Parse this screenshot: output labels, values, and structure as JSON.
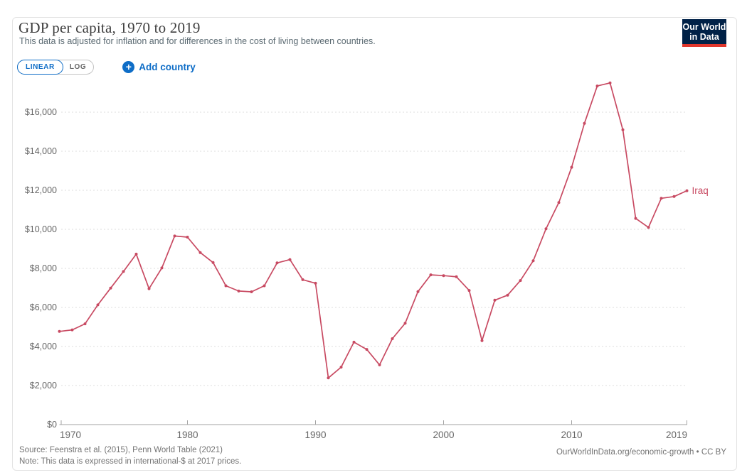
{
  "header": {
    "title": "GDP per capita, 1970 to 2019",
    "subtitle": "This data is adjusted for inflation and for differences in the cost of living between countries."
  },
  "logo": {
    "line1": "Our World",
    "line2": "in Data"
  },
  "controls": {
    "linear_label": "LINEAR",
    "log_label": "LOG",
    "plus_icon": "+",
    "add_country_label": "Add country"
  },
  "footer": {
    "source": "Source: Feenstra et al. (2015), Penn World Table (2021)",
    "note": "Note: This data is expressed in international-$ at 2017 prices.",
    "credit": "OurWorldInData.org/economic-growth • CC BY"
  },
  "colors": {
    "line": "#c84a62",
    "control_blue": "#0e6dc7",
    "logo_navy": "#002147",
    "logo_red": "#e0362c",
    "gridline": "#dedede",
    "axis": "#a3a3a3",
    "tick_text": "#666666"
  },
  "chart_data": {
    "type": "line",
    "title": "GDP per capita, 1970 to 2019",
    "xlabel": "",
    "ylabel": "",
    "xlim": [
      1970,
      2019
    ],
    "ylim": [
      0,
      18000
    ],
    "grid": "horizontal-dashed",
    "legend": "series-end-label",
    "x": [
      1970,
      1971,
      1972,
      1973,
      1974,
      1975,
      1976,
      1977,
      1978,
      1979,
      1980,
      1981,
      1982,
      1983,
      1984,
      1985,
      1986,
      1987,
      1988,
      1989,
      1990,
      1991,
      1992,
      1993,
      1994,
      1995,
      1996,
      1997,
      1998,
      1999,
      2000,
      2001,
      2002,
      2003,
      2004,
      2005,
      2006,
      2007,
      2008,
      2009,
      2010,
      2011,
      2012,
      2013,
      2014,
      2015,
      2016,
      2017,
      2018,
      2019
    ],
    "series": [
      {
        "name": "Iraq",
        "color": "#c84a62",
        "values": [
          4770,
          4850,
          5160,
          6130,
          6990,
          7840,
          8730,
          6960,
          8020,
          9660,
          9600,
          8810,
          8300,
          7110,
          6840,
          6800,
          7110,
          8280,
          8450,
          7420,
          7240,
          2390,
          2940,
          4220,
          3850,
          3060,
          4400,
          5190,
          6810,
          7670,
          7630,
          7570,
          6870,
          4300,
          6370,
          6630,
          7380,
          8390,
          10030,
          11370,
          13180,
          15430,
          17340,
          17500,
          15100,
          10560,
          10100,
          11590,
          11680,
          11980
        ]
      }
    ],
    "y_ticks": [
      {
        "value": 0,
        "label": "$0"
      },
      {
        "value": 2000,
        "label": "$2,000"
      },
      {
        "value": 4000,
        "label": "$4,000"
      },
      {
        "value": 6000,
        "label": "$6,000"
      },
      {
        "value": 8000,
        "label": "$8,000"
      },
      {
        "value": 10000,
        "label": "$10,000"
      },
      {
        "value": 12000,
        "label": "$12,000"
      },
      {
        "value": 14000,
        "label": "$14,000"
      },
      {
        "value": 16000,
        "label": "$16,000"
      }
    ],
    "x_ticks": [
      {
        "year": 1970,
        "label": "1970"
      },
      {
        "year": 1980,
        "label": "1980"
      },
      {
        "year": 1990,
        "label": "1990"
      },
      {
        "year": 2000,
        "label": "2000"
      },
      {
        "year": 2010,
        "label": "2010"
      },
      {
        "year": 2019,
        "label": "2019"
      }
    ]
  }
}
